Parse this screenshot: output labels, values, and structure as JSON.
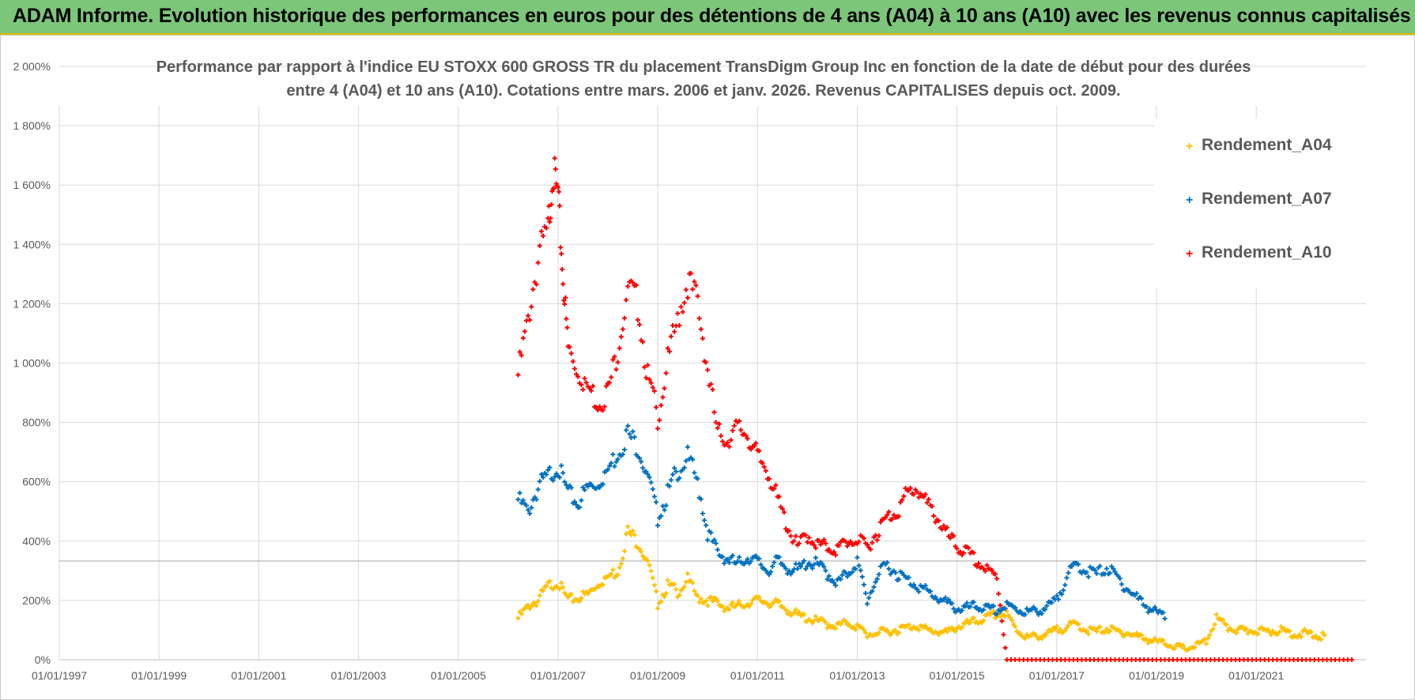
{
  "header": {
    "banner_title": "ADAM Informe. Evolution historique des performances en euros pour des détentions de 4 ans (A04) à 10 ans (A10) avec les revenus connus capitalisés"
  },
  "colors": {
    "banner_bg": "#7cc67a",
    "series_A04": "#ffc000",
    "series_A07": "#0070c0",
    "series_A10": "#ff0000",
    "grid": "#d9d9d9",
    "text": "#595959"
  },
  "chart_data": {
    "type": "scatter",
    "title_line1": "Performance par rapport à l'indice EU STOXX 600 GROSS TR  du placement TransDigm Group Inc en fonction de la date de début pour des durées",
    "title_line2": "entre 4 (A04) et 10 ans (A10).  Cotations entre mars. 2006 et janv. 2026. Revenus CAPITALISES depuis oct. 2009.",
    "x_tick_labels": [
      "01/01/1997",
      "01/01/1999",
      "01/01/2001",
      "01/01/2003",
      "01/01/2005",
      "01/01/2007",
      "01/01/2009",
      "01/01/2011",
      "01/01/2013",
      "01/01/2015",
      "01/01/2017",
      "01/01/2019",
      "01/01/2021"
    ],
    "x_tick_years": [
      1997,
      1999,
      2001,
      2003,
      2005,
      2007,
      2009,
      2011,
      2013,
      2015,
      2017,
      2019,
      2021
    ],
    "xlim": [
      1997,
      2023.2
    ],
    "y_tick_labels": [
      "0%",
      "200%",
      "400%",
      "600%",
      "800%",
      "1 000%",
      "1 200%",
      "1 400%",
      "1 600%",
      "1 800%",
      "2 000%"
    ],
    "y_tick_values": [
      0,
      200,
      400,
      600,
      800,
      1000,
      1200,
      1400,
      1600,
      1800,
      2000
    ],
    "ylim": [
      0,
      2000
    ],
    "legend": [
      "Rendement_A04",
      "Rendement_A07",
      "Rendement_A10"
    ],
    "series": [
      {
        "name": "Rendement_A04",
        "points": [
          [
            2006.2,
            140
          ],
          [
            2006.4,
            180
          ],
          [
            2006.6,
            200
          ],
          [
            2006.8,
            250
          ],
          [
            2007.0,
            260
          ],
          [
            2007.2,
            200
          ],
          [
            2007.4,
            210
          ],
          [
            2007.6,
            220
          ],
          [
            2007.8,
            260
          ],
          [
            2008.0,
            280
          ],
          [
            2008.2,
            300
          ],
          [
            2008.4,
            430
          ],
          [
            2008.6,
            400
          ],
          [
            2008.8,
            330
          ],
          [
            2009.0,
            190
          ],
          [
            2009.2,
            250
          ],
          [
            2009.4,
            230
          ],
          [
            2009.6,
            270
          ],
          [
            2009.8,
            210
          ],
          [
            2010.0,
            200
          ],
          [
            2010.2,
            190
          ],
          [
            2010.4,
            175
          ],
          [
            2010.6,
            180
          ],
          [
            2010.8,
            195
          ],
          [
            2011.0,
            200
          ],
          [
            2011.2,
            195
          ],
          [
            2011.4,
            185
          ],
          [
            2011.6,
            170
          ],
          [
            2011.8,
            150
          ],
          [
            2012.0,
            140
          ],
          [
            2012.2,
            130
          ],
          [
            2012.4,
            120
          ],
          [
            2012.6,
            115
          ],
          [
            2012.8,
            125
          ],
          [
            2013.0,
            110
          ],
          [
            2013.2,
            85
          ],
          [
            2013.4,
            90
          ],
          [
            2013.6,
            95
          ],
          [
            2013.8,
            100
          ],
          [
            2014.0,
            110
          ],
          [
            2014.2,
            115
          ],
          [
            2014.4,
            100
          ],
          [
            2014.6,
            95
          ],
          [
            2014.8,
            90
          ],
          [
            2015.0,
            110
          ],
          [
            2015.2,
            120
          ],
          [
            2015.4,
            130
          ],
          [
            2015.6,
            140
          ],
          [
            2015.8,
            155
          ],
          [
            2016.0,
            150
          ],
          [
            2016.2,
            100
          ],
          [
            2016.4,
            75
          ],
          [
            2016.6,
            80
          ],
          [
            2016.8,
            85
          ],
          [
            2017.0,
            100
          ],
          [
            2017.2,
            110
          ],
          [
            2017.4,
            120
          ],
          [
            2017.6,
            100
          ],
          [
            2017.8,
            95
          ],
          [
            2018.0,
            105
          ],
          [
            2018.2,
            95
          ],
          [
            2018.4,
            90
          ],
          [
            2018.6,
            80
          ],
          [
            2018.8,
            70
          ],
          [
            2019.0,
            60
          ],
          [
            2019.2,
            55
          ],
          [
            2019.4,
            45
          ],
          [
            2019.6,
            35
          ],
          [
            2019.8,
            50
          ],
          [
            2020.0,
            60
          ],
          [
            2020.2,
            140
          ],
          [
            2020.4,
            110
          ],
          [
            2020.6,
            100
          ],
          [
            2020.8,
            95
          ],
          [
            2021.0,
            100
          ],
          [
            2021.2,
            95
          ],
          [
            2021.4,
            100
          ],
          [
            2021.6,
            95
          ],
          [
            2021.8,
            85
          ],
          [
            2022.0,
            90
          ],
          [
            2022.2,
            80
          ],
          [
            2022.4,
            80
          ]
        ]
      },
      {
        "name": "Rendement_A07",
        "points": [
          [
            2006.2,
            540
          ],
          [
            2006.4,
            500
          ],
          [
            2006.6,
            580
          ],
          [
            2006.8,
            620
          ],
          [
            2007.0,
            650
          ],
          [
            2007.2,
            560
          ],
          [
            2007.4,
            530
          ],
          [
            2007.6,
            580
          ],
          [
            2007.8,
            600
          ],
          [
            2008.0,
            640
          ],
          [
            2008.2,
            700
          ],
          [
            2008.4,
            760
          ],
          [
            2008.6,
            720
          ],
          [
            2008.8,
            620
          ],
          [
            2009.0,
            480
          ],
          [
            2009.2,
            560
          ],
          [
            2009.4,
            640
          ],
          [
            2009.6,
            680
          ],
          [
            2009.8,
            600
          ],
          [
            2010.0,
            430
          ],
          [
            2010.2,
            360
          ],
          [
            2010.4,
            340
          ],
          [
            2010.6,
            320
          ],
          [
            2010.8,
            350
          ],
          [
            2011.0,
            330
          ],
          [
            2011.2,
            300
          ],
          [
            2011.4,
            330
          ],
          [
            2011.6,
            310
          ],
          [
            2011.8,
            300
          ],
          [
            2012.0,
            330
          ],
          [
            2012.2,
            320
          ],
          [
            2012.4,
            290
          ],
          [
            2012.6,
            260
          ],
          [
            2012.8,
            290
          ],
          [
            2013.0,
            330
          ],
          [
            2013.2,
            200
          ],
          [
            2013.4,
            280
          ],
          [
            2013.6,
            320
          ],
          [
            2013.8,
            290
          ],
          [
            2014.0,
            270
          ],
          [
            2014.2,
            250
          ],
          [
            2014.4,
            230
          ],
          [
            2014.6,
            210
          ],
          [
            2014.8,
            190
          ],
          [
            2015.0,
            170
          ],
          [
            2015.2,
            175
          ],
          [
            2015.4,
            180
          ],
          [
            2015.6,
            170
          ],
          [
            2015.8,
            165
          ],
          [
            2016.0,
            180
          ],
          [
            2016.2,
            170
          ],
          [
            2016.4,
            160
          ],
          [
            2016.6,
            165
          ],
          [
            2016.8,
            175
          ],
          [
            2017.0,
            200
          ],
          [
            2017.2,
            280
          ],
          [
            2017.4,
            320
          ],
          [
            2017.6,
            300
          ],
          [
            2017.8,
            290
          ],
          [
            2018.0,
            310
          ],
          [
            2018.2,
            280
          ],
          [
            2018.4,
            240
          ],
          [
            2018.6,
            210
          ],
          [
            2018.8,
            180
          ],
          [
            2019.0,
            160
          ],
          [
            2019.2,
            140
          ]
        ]
      },
      {
        "name": "Rendement_A10",
        "points": [
          [
            2006.2,
            960
          ],
          [
            2006.4,
            1150
          ],
          [
            2006.6,
            1350
          ],
          [
            2006.8,
            1450
          ],
          [
            2006.9,
            1650
          ],
          [
            2007.0,
            1550
          ],
          [
            2007.1,
            1300
          ],
          [
            2007.2,
            1050
          ],
          [
            2007.4,
            980
          ],
          [
            2007.6,
            920
          ],
          [
            2007.8,
            870
          ],
          [
            2008.0,
            900
          ],
          [
            2008.2,
            1050
          ],
          [
            2008.4,
            1250
          ],
          [
            2008.6,
            1200
          ],
          [
            2008.8,
            950
          ],
          [
            2009.0,
            820
          ],
          [
            2009.2,
            1000
          ],
          [
            2009.4,
            1150
          ],
          [
            2009.6,
            1280
          ],
          [
            2009.8,
            1200
          ],
          [
            2010.0,
            980
          ],
          [
            2010.2,
            760
          ],
          [
            2010.4,
            750
          ],
          [
            2010.6,
            780
          ],
          [
            2010.8,
            760
          ],
          [
            2011.0,
            680
          ],
          [
            2011.2,
            640
          ],
          [
            2011.4,
            540
          ],
          [
            2011.6,
            450
          ],
          [
            2011.8,
            380
          ],
          [
            2012.0,
            420
          ],
          [
            2012.2,
            390
          ],
          [
            2012.4,
            380
          ],
          [
            2012.6,
            370
          ],
          [
            2012.8,
            400
          ],
          [
            2013.0,
            400
          ],
          [
            2013.2,
            380
          ],
          [
            2013.4,
            430
          ],
          [
            2013.6,
            480
          ],
          [
            2013.8,
            500
          ],
          [
            2014.0,
            560
          ],
          [
            2014.2,
            580
          ],
          [
            2014.4,
            520
          ],
          [
            2014.6,
            480
          ],
          [
            2014.8,
            420
          ],
          [
            2015.0,
            380
          ],
          [
            2015.2,
            360
          ],
          [
            2015.4,
            330
          ],
          [
            2015.6,
            300
          ],
          [
            2015.8,
            280
          ],
          [
            2016.0,
            0
          ],
          [
            2016.5,
            0
          ],
          [
            2017.0,
            0
          ],
          [
            2017.5,
            0
          ],
          [
            2018.0,
            0
          ],
          [
            2018.5,
            0
          ],
          [
            2019.0,
            0
          ],
          [
            2019.5,
            0
          ],
          [
            2020.0,
            0
          ],
          [
            2020.5,
            0
          ],
          [
            2021.0,
            0
          ],
          [
            2021.5,
            0
          ],
          [
            2022.0,
            0
          ],
          [
            2022.5,
            0
          ],
          [
            2023.0,
            0
          ]
        ]
      }
    ]
  }
}
